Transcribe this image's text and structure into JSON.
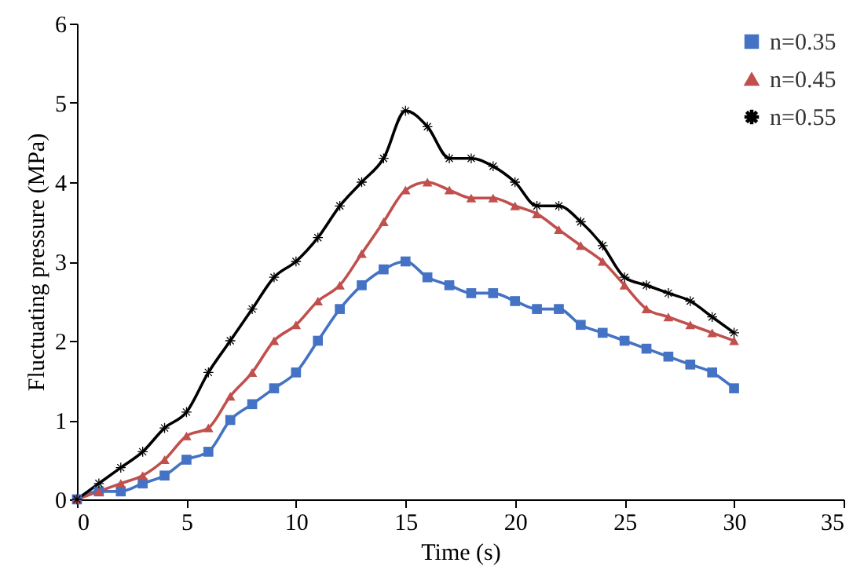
{
  "chart_data": {
    "type": "line",
    "xlabel": "Time (s)",
    "ylabel": "Fluctuating pressure (MPa)",
    "x": [
      0,
      1,
      2,
      3,
      4,
      5,
      6,
      7,
      8,
      9,
      10,
      11,
      12,
      13,
      14,
      15,
      16,
      17,
      18,
      19,
      20,
      21,
      22,
      23,
      24,
      25,
      26,
      27,
      28,
      29,
      30
    ],
    "series": [
      {
        "name": "n=0.35",
        "color": "#4472c4",
        "marker": "square",
        "values": [
          0,
          0.1,
          0.1,
          0.2,
          0.3,
          0.5,
          0.6,
          1.0,
          1.2,
          1.4,
          1.6,
          2.0,
          2.4,
          2.7,
          2.9,
          3.0,
          2.8,
          2.7,
          2.6,
          2.6,
          2.5,
          2.4,
          2.4,
          2.2,
          2.1,
          2.0,
          1.9,
          1.8,
          1.7,
          1.6,
          1.4
        ]
      },
      {
        "name": "n=0.45",
        "color": "#c0504d",
        "marker": "triangle",
        "values": [
          0,
          0.1,
          0.2,
          0.3,
          0.5,
          0.8,
          0.9,
          1.3,
          1.6,
          2.0,
          2.2,
          2.5,
          2.7,
          3.1,
          3.5,
          3.9,
          4.0,
          3.9,
          3.8,
          3.8,
          3.7,
          3.6,
          3.4,
          3.2,
          3.0,
          2.7,
          2.4,
          2.3,
          2.2,
          2.1,
          2.0
        ]
      },
      {
        "name": "n=0.55",
        "color": "#000000",
        "marker": "star",
        "values": [
          0,
          0.2,
          0.4,
          0.6,
          0.9,
          1.1,
          1.6,
          2.0,
          2.4,
          2.8,
          3.0,
          3.3,
          3.7,
          4.0,
          4.3,
          4.9,
          4.7,
          4.3,
          4.3,
          4.2,
          4.0,
          3.7,
          3.7,
          3.5,
          3.2,
          2.8,
          2.7,
          2.6,
          2.5,
          2.3,
          2.1
        ]
      }
    ],
    "xlim": [
      0,
      35
    ],
    "xticks": [
      0,
      5,
      10,
      15,
      20,
      25,
      30,
      35
    ],
    "ylim": [
      0,
      6
    ],
    "yticks": [
      0,
      1,
      2,
      3,
      4,
      5,
      6
    ],
    "grid": false,
    "legend": "top right",
    "line_style": "solid"
  }
}
